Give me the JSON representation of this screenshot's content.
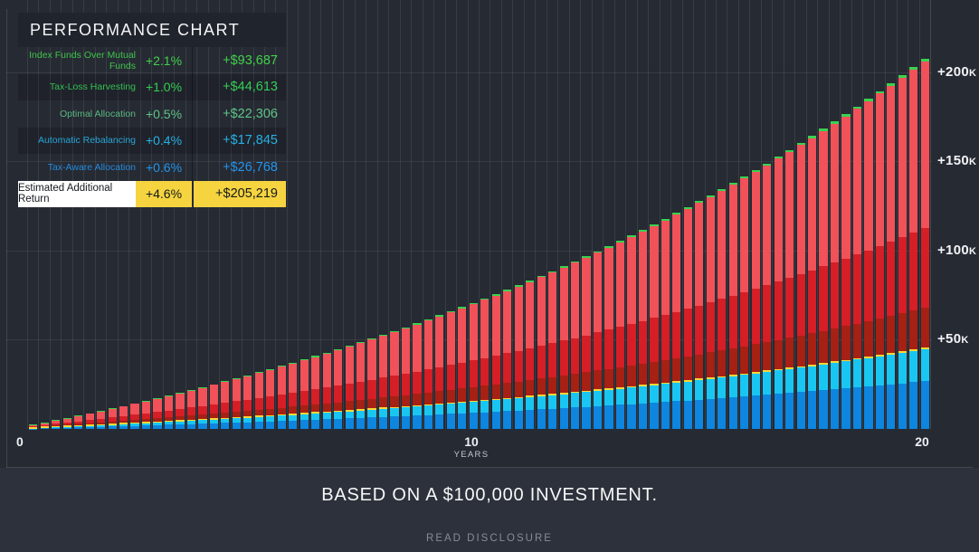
{
  "panel": {
    "title": "PERFORMANCE CHART"
  },
  "legend": {
    "rows": [
      {
        "label": "Index Funds Over Mutual Funds",
        "percent": "+2.1%",
        "amount": "+$93,687",
        "color": "#41d14b"
      },
      {
        "label": "Tax-Loss Harvesting",
        "percent": "+1.0%",
        "amount": "+$44,613",
        "color": "#34cd56"
      },
      {
        "label": "Optimal Allocation",
        "percent": "+0.5%",
        "amount": "+$22,306",
        "color": "#5ec487"
      },
      {
        "label": "Automatic Rebalancing",
        "percent": "+0.4%",
        "amount": "+$17,845",
        "color": "#27b1e6"
      },
      {
        "label": "Tax-Aware Allocation",
        "percent": "+0.6%",
        "amount": "+$26,768",
        "color": "#2394ea"
      }
    ],
    "total": {
      "label": "Estimated Additional Return",
      "percent": "+4.6%",
      "amount": "+$205,219",
      "highlight_color": "#f5d440",
      "label_bg": "#ffffff"
    }
  },
  "chart_data": {
    "type": "bar",
    "stacked": true,
    "title": "PERFORMANCE CHART",
    "x_axis": {
      "ticks": [
        "0",
        "10",
        "20"
      ],
      "unit": "YEARS",
      "range_years": [
        0,
        20
      ],
      "bars_per_year": 4,
      "bar_count": 80
    },
    "y_axis": {
      "ticks": [
        "+50k",
        "+100k",
        "+150k",
        "+200k"
      ],
      "tick_values": [
        50000,
        100000,
        150000,
        200000
      ],
      "ylim": [
        0,
        235000
      ],
      "grid": true
    },
    "series": [
      {
        "name": "Tax-Aware Allocation",
        "final_value": 26768,
        "color": "#0e85de"
      },
      {
        "name": "Automatic Rebalancing",
        "final_value": 17845,
        "color": "#19c6f2"
      },
      {
        "name": "Optimal Allocation",
        "final_value": 22306,
        "color": "#a62014"
      },
      {
        "name": "Tax-Loss Harvesting",
        "final_value": 44613,
        "color": "#d51e26"
      },
      {
        "name": "Index Funds Over Mutual Funds",
        "final_value": 93687,
        "color": "#f15158"
      }
    ],
    "total_final_value": 205219,
    "growth": {
      "model": "value(t) = final_value * ((1+r)^t - 1) / ((1+r)^20 - 1)",
      "annual_rate": 0.07
    },
    "caps": {
      "yellow_divider_color": "#f8d836",
      "green_top_color": "#39d24f"
    },
    "legend_position": "top-left",
    "based_on_investment": 100000
  },
  "footer": {
    "note": "BASED ON A $100,000 INVESTMENT.",
    "disclosure": "READ DISCLOSURE"
  }
}
